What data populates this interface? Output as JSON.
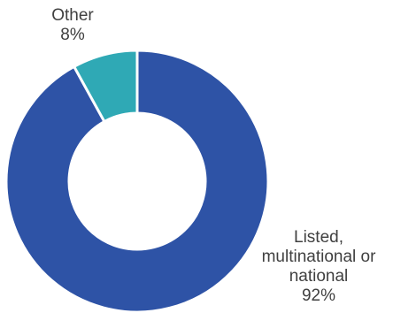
{
  "chart_data": {
    "type": "pie",
    "donut": true,
    "categories": [
      "Listed, multinational or national",
      "Other"
    ],
    "values": [
      92,
      8
    ],
    "colors": [
      "#2E53A6",
      "#2FA9B5"
    ],
    "labels": [
      {
        "lines": [
          "Listed,",
          "multinational or",
          "national"
        ],
        "value_text": "92%"
      },
      {
        "lines": [
          "Other"
        ],
        "value_text": "8%"
      }
    ]
  }
}
